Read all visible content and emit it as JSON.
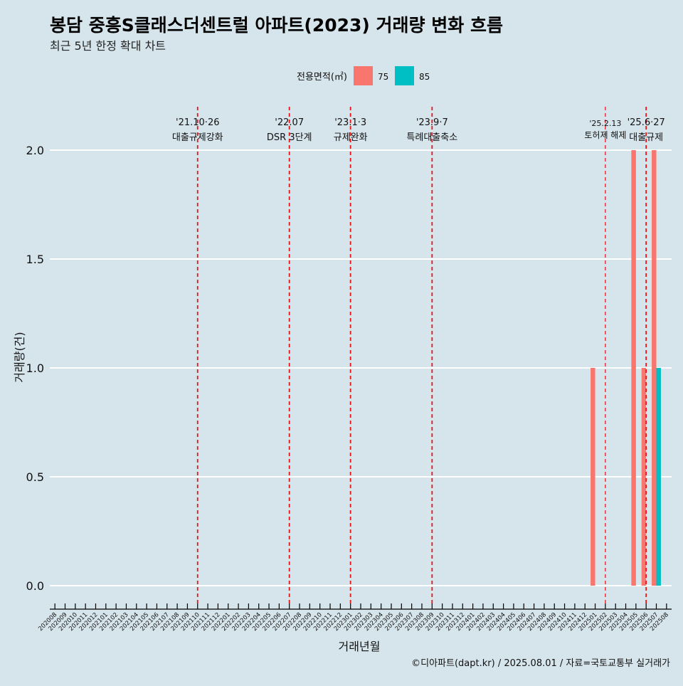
{
  "title": "봉담 중흥S클래스더센트럴 아파트(2023) 거래량 변화 흐름",
  "subtitle": "최근 5년 한정 확대 차트",
  "caption": "©디아파트(dapt.kr) / 2025.08.01 / 자료=국토교통부 실거래가",
  "legend_title": "전용면적(㎡)",
  "colors": {
    "background": "#d6e4ec",
    "s75": "#f8766d",
    "s85": "#00bfc4",
    "event_line": "#e8141b",
    "grid": "#ffffff"
  },
  "chart_data": {
    "type": "bar",
    "xlabel": "거래년월",
    "ylabel": "거래량(건)",
    "ylim": [
      0,
      2.0
    ],
    "yticks": [
      "0.0",
      "0.5",
      "1.0",
      "1.5",
      "2.0"
    ],
    "categories": [
      "202008",
      "202009",
      "202010",
      "202011",
      "202012",
      "202101",
      "202102",
      "202103",
      "202104",
      "202105",
      "202106",
      "202107",
      "202108",
      "202109",
      "202110",
      "202111",
      "202112",
      "202201",
      "202202",
      "202203",
      "202204",
      "202205",
      "202206",
      "202207",
      "202208",
      "202209",
      "202210",
      "202211",
      "202212",
      "202301",
      "202302",
      "202303",
      "202304",
      "202305",
      "202306",
      "202307",
      "202308",
      "202309",
      "202310",
      "202311",
      "202312",
      "202401",
      "202402",
      "202403",
      "202404",
      "202405",
      "202406",
      "202407",
      "202408",
      "202409",
      "202410",
      "202411",
      "202412",
      "202501",
      "202502",
      "202503",
      "202504",
      "202505",
      "202506",
      "202507",
      "202508"
    ],
    "series": [
      {
        "name": "75",
        "points": [
          {
            "x": "202501",
            "y": 1
          },
          {
            "x": "202505",
            "y": 2
          },
          {
            "x": "202506",
            "y": 1
          },
          {
            "x": "202507",
            "y": 2
          }
        ]
      },
      {
        "name": "85",
        "points": [
          {
            "x": "202507",
            "y": 1
          }
        ]
      }
    ],
    "events": [
      {
        "x": "202110",
        "date": "'21.10·26",
        "label": "대출규제강화"
      },
      {
        "x": "202207",
        "date": "'22.07",
        "label": "DSR 3단계"
      },
      {
        "x": "202301",
        "date": "'23.1·3",
        "label": "규제완화"
      },
      {
        "x": "202309",
        "date": "'23.9·7",
        "label": "특례대출축소"
      },
      {
        "x": "202502",
        "date": "'25.2.13",
        "label": "토허제 해제"
      },
      {
        "x": "202506",
        "date": "'25.6·27",
        "label": "대출규제"
      }
    ],
    "legend_position": "top",
    "grid": true
  }
}
